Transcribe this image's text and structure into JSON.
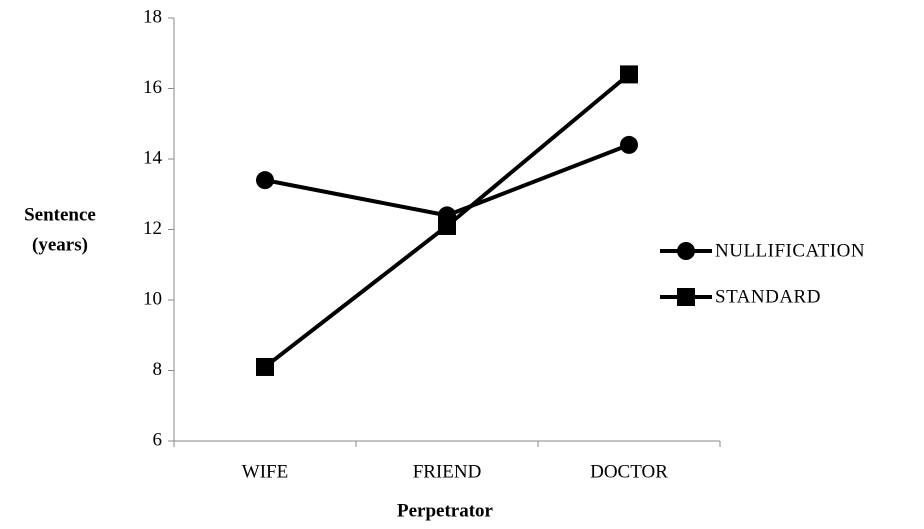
{
  "chart_data": {
    "type": "line",
    "xlabel": "Perpetrator",
    "ylabel": [
      "Sentence",
      "(years)"
    ],
    "categories": [
      "WIFE",
      "FRIEND",
      "DOCTOR"
    ],
    "series": [
      {
        "name": "NULLIFICATION",
        "color": "#000000",
        "marker": "circle",
        "values": [
          13.4,
          12.4,
          14.4
        ]
      },
      {
        "name": "STANDARD",
        "color": "#000000",
        "marker": "square",
        "values": [
          8.1,
          12.1,
          16.4
        ]
      }
    ],
    "ylim": [
      6,
      18
    ],
    "yticks": [
      6,
      8,
      10,
      12,
      14,
      16,
      18
    ],
    "grid": false,
    "legend": "right"
  }
}
